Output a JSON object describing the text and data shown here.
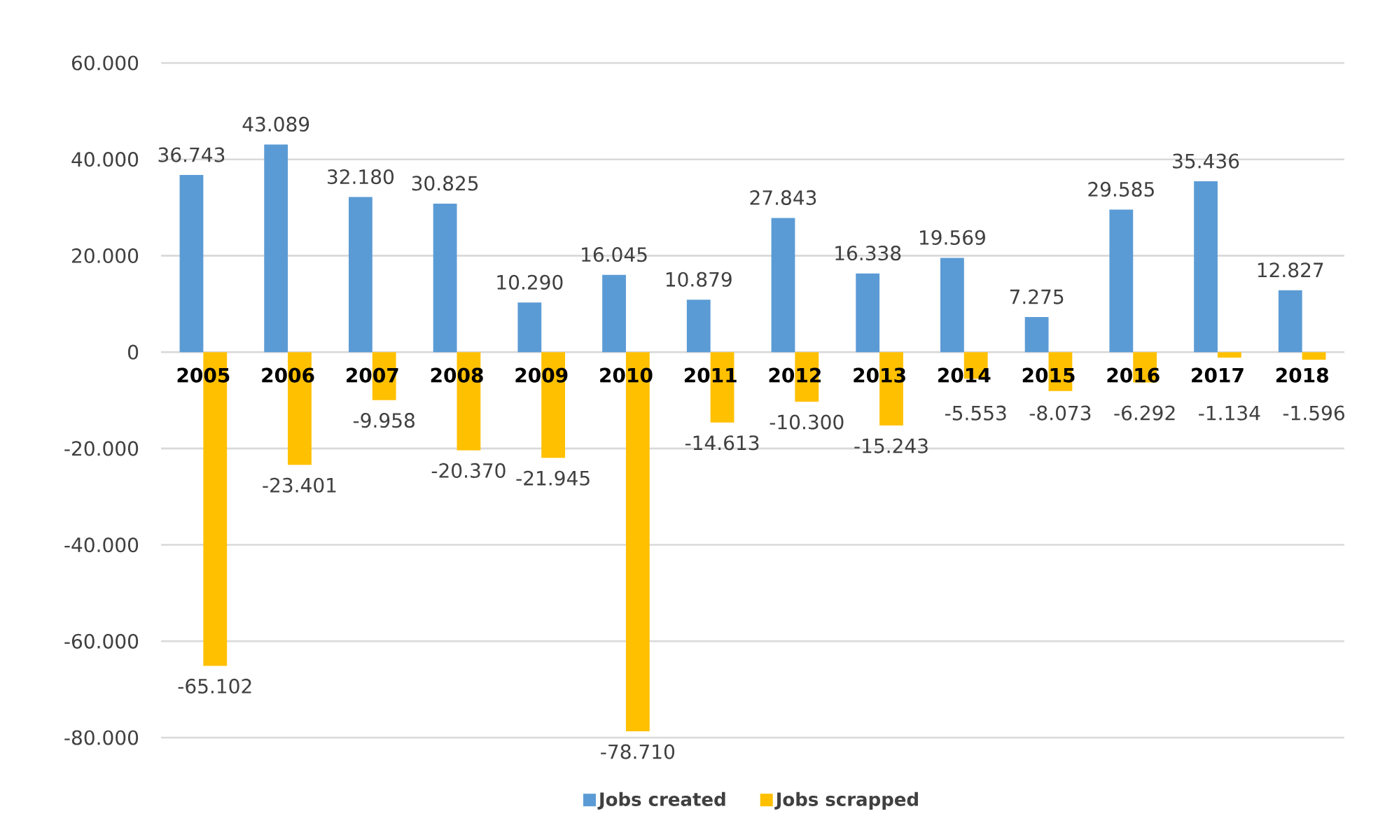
{
  "chart_data": {
    "type": "bar",
    "categories": [
      "2005",
      "2006",
      "2007",
      "2008",
      "2009",
      "2010",
      "2011",
      "2012",
      "2013",
      "2014",
      "2015",
      "2016",
      "2017",
      "2018"
    ],
    "series": [
      {
        "name": "Jobs created",
        "color": "#5b9bd5",
        "values": [
          36743,
          43089,
          32180,
          30825,
          10290,
          16045,
          10879,
          27843,
          16338,
          19569,
          7275,
          29585,
          35436,
          12827
        ],
        "value_labels": [
          "36.743",
          "43.089",
          "32.180",
          "30.825",
          "10.290",
          "16.045",
          "10.879",
          "27.843",
          "16.338",
          "19.569",
          "7.275",
          "29.585",
          "35.436",
          "12.827"
        ]
      },
      {
        "name": "Jobs scrapped",
        "color": "#ffc000",
        "values": [
          -65102,
          -23401,
          -9958,
          -20370,
          -21945,
          -78710,
          -14613,
          -10300,
          -15243,
          -5553,
          -8073,
          -6292,
          -1134,
          -1596
        ],
        "value_labels": [
          "-65.102",
          "-23.401",
          "-9.958",
          "-20.370",
          "-21.945",
          "-78.710",
          "-14.613",
          "-10.300",
          "-15.243",
          "-5.553",
          "-8.073",
          "-6.292",
          "-1.134",
          "-1.596"
        ]
      }
    ],
    "ylim": [
      -80000,
      60000
    ],
    "yticks": [
      {
        "value": -80000,
        "label": "-80.000"
      },
      {
        "value": -60000,
        "label": "-60.000"
      },
      {
        "value": -40000,
        "label": "-40.000"
      },
      {
        "value": -20000,
        "label": "-20.000"
      },
      0,
      {
        "value": 20000,
        "label": "20.000"
      },
      {
        "value": 40000,
        "label": "40.000"
      },
      {
        "value": 60000,
        "label": "60.000"
      }
    ],
    "grid": "y",
    "legend": "bottom"
  }
}
